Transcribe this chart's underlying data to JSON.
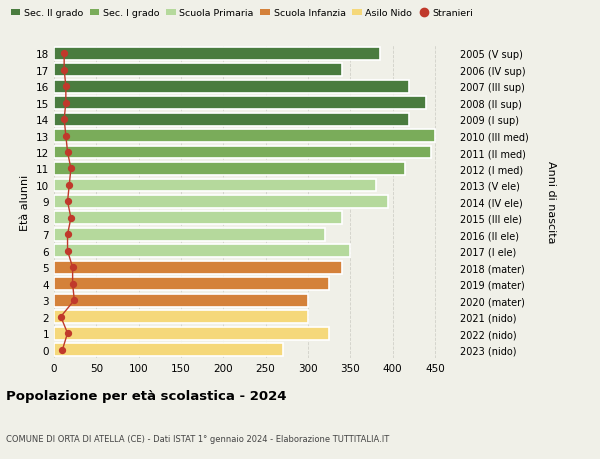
{
  "ages": [
    18,
    17,
    16,
    15,
    14,
    13,
    12,
    11,
    10,
    9,
    8,
    7,
    6,
    5,
    4,
    3,
    2,
    1,
    0
  ],
  "right_labels": [
    "2005 (V sup)",
    "2006 (IV sup)",
    "2007 (III sup)",
    "2008 (II sup)",
    "2009 (I sup)",
    "2010 (III med)",
    "2011 (II med)",
    "2012 (I med)",
    "2013 (V ele)",
    "2014 (IV ele)",
    "2015 (III ele)",
    "2016 (II ele)",
    "2017 (I ele)",
    "2018 (mater)",
    "2019 (mater)",
    "2020 (mater)",
    "2021 (nido)",
    "2022 (nido)",
    "2023 (nido)"
  ],
  "values": [
    385,
    340,
    420,
    440,
    420,
    450,
    445,
    415,
    380,
    395,
    340,
    320,
    350,
    340,
    325,
    300,
    300,
    325,
    270
  ],
  "stranieri": [
    12,
    12,
    14,
    14,
    12,
    14,
    16,
    20,
    18,
    16,
    20,
    16,
    16,
    22,
    22,
    24,
    8,
    16,
    10
  ],
  "bar_colors": [
    "#4a7c3f",
    "#4a7c3f",
    "#4a7c3f",
    "#4a7c3f",
    "#4a7c3f",
    "#7aac5a",
    "#7aac5a",
    "#7aac5a",
    "#b5d99c",
    "#b5d99c",
    "#b5d99c",
    "#b5d99c",
    "#b5d99c",
    "#d4813a",
    "#d4813a",
    "#d4813a",
    "#f5d87a",
    "#f5d87a",
    "#f5d87a"
  ],
  "legend_labels": [
    "Sec. II grado",
    "Sec. I grado",
    "Scuola Primaria",
    "Scuola Infanzia",
    "Asilo Nido",
    "Stranieri"
  ],
  "legend_colors": [
    "#4a7c3f",
    "#7aac5a",
    "#b5d99c",
    "#d4813a",
    "#f5d87a",
    "#c0392b"
  ],
  "stranieri_color": "#c0392b",
  "ylabel_left": "Età alunni",
  "ylabel_right": "Anni di nascita",
  "title": "Popolazione per età scolastica - 2024",
  "subtitle": "COMUNE DI ORTA DI ATELLA (CE) - Dati ISTAT 1° gennaio 2024 - Elaborazione TUTTITALIA.IT",
  "xlim": [
    0,
    475
  ],
  "xticks": [
    0,
    50,
    100,
    150,
    200,
    250,
    300,
    350,
    400,
    450
  ],
  "background_color": "#f0f0e8",
  "grid_color": "#d0d0c8"
}
